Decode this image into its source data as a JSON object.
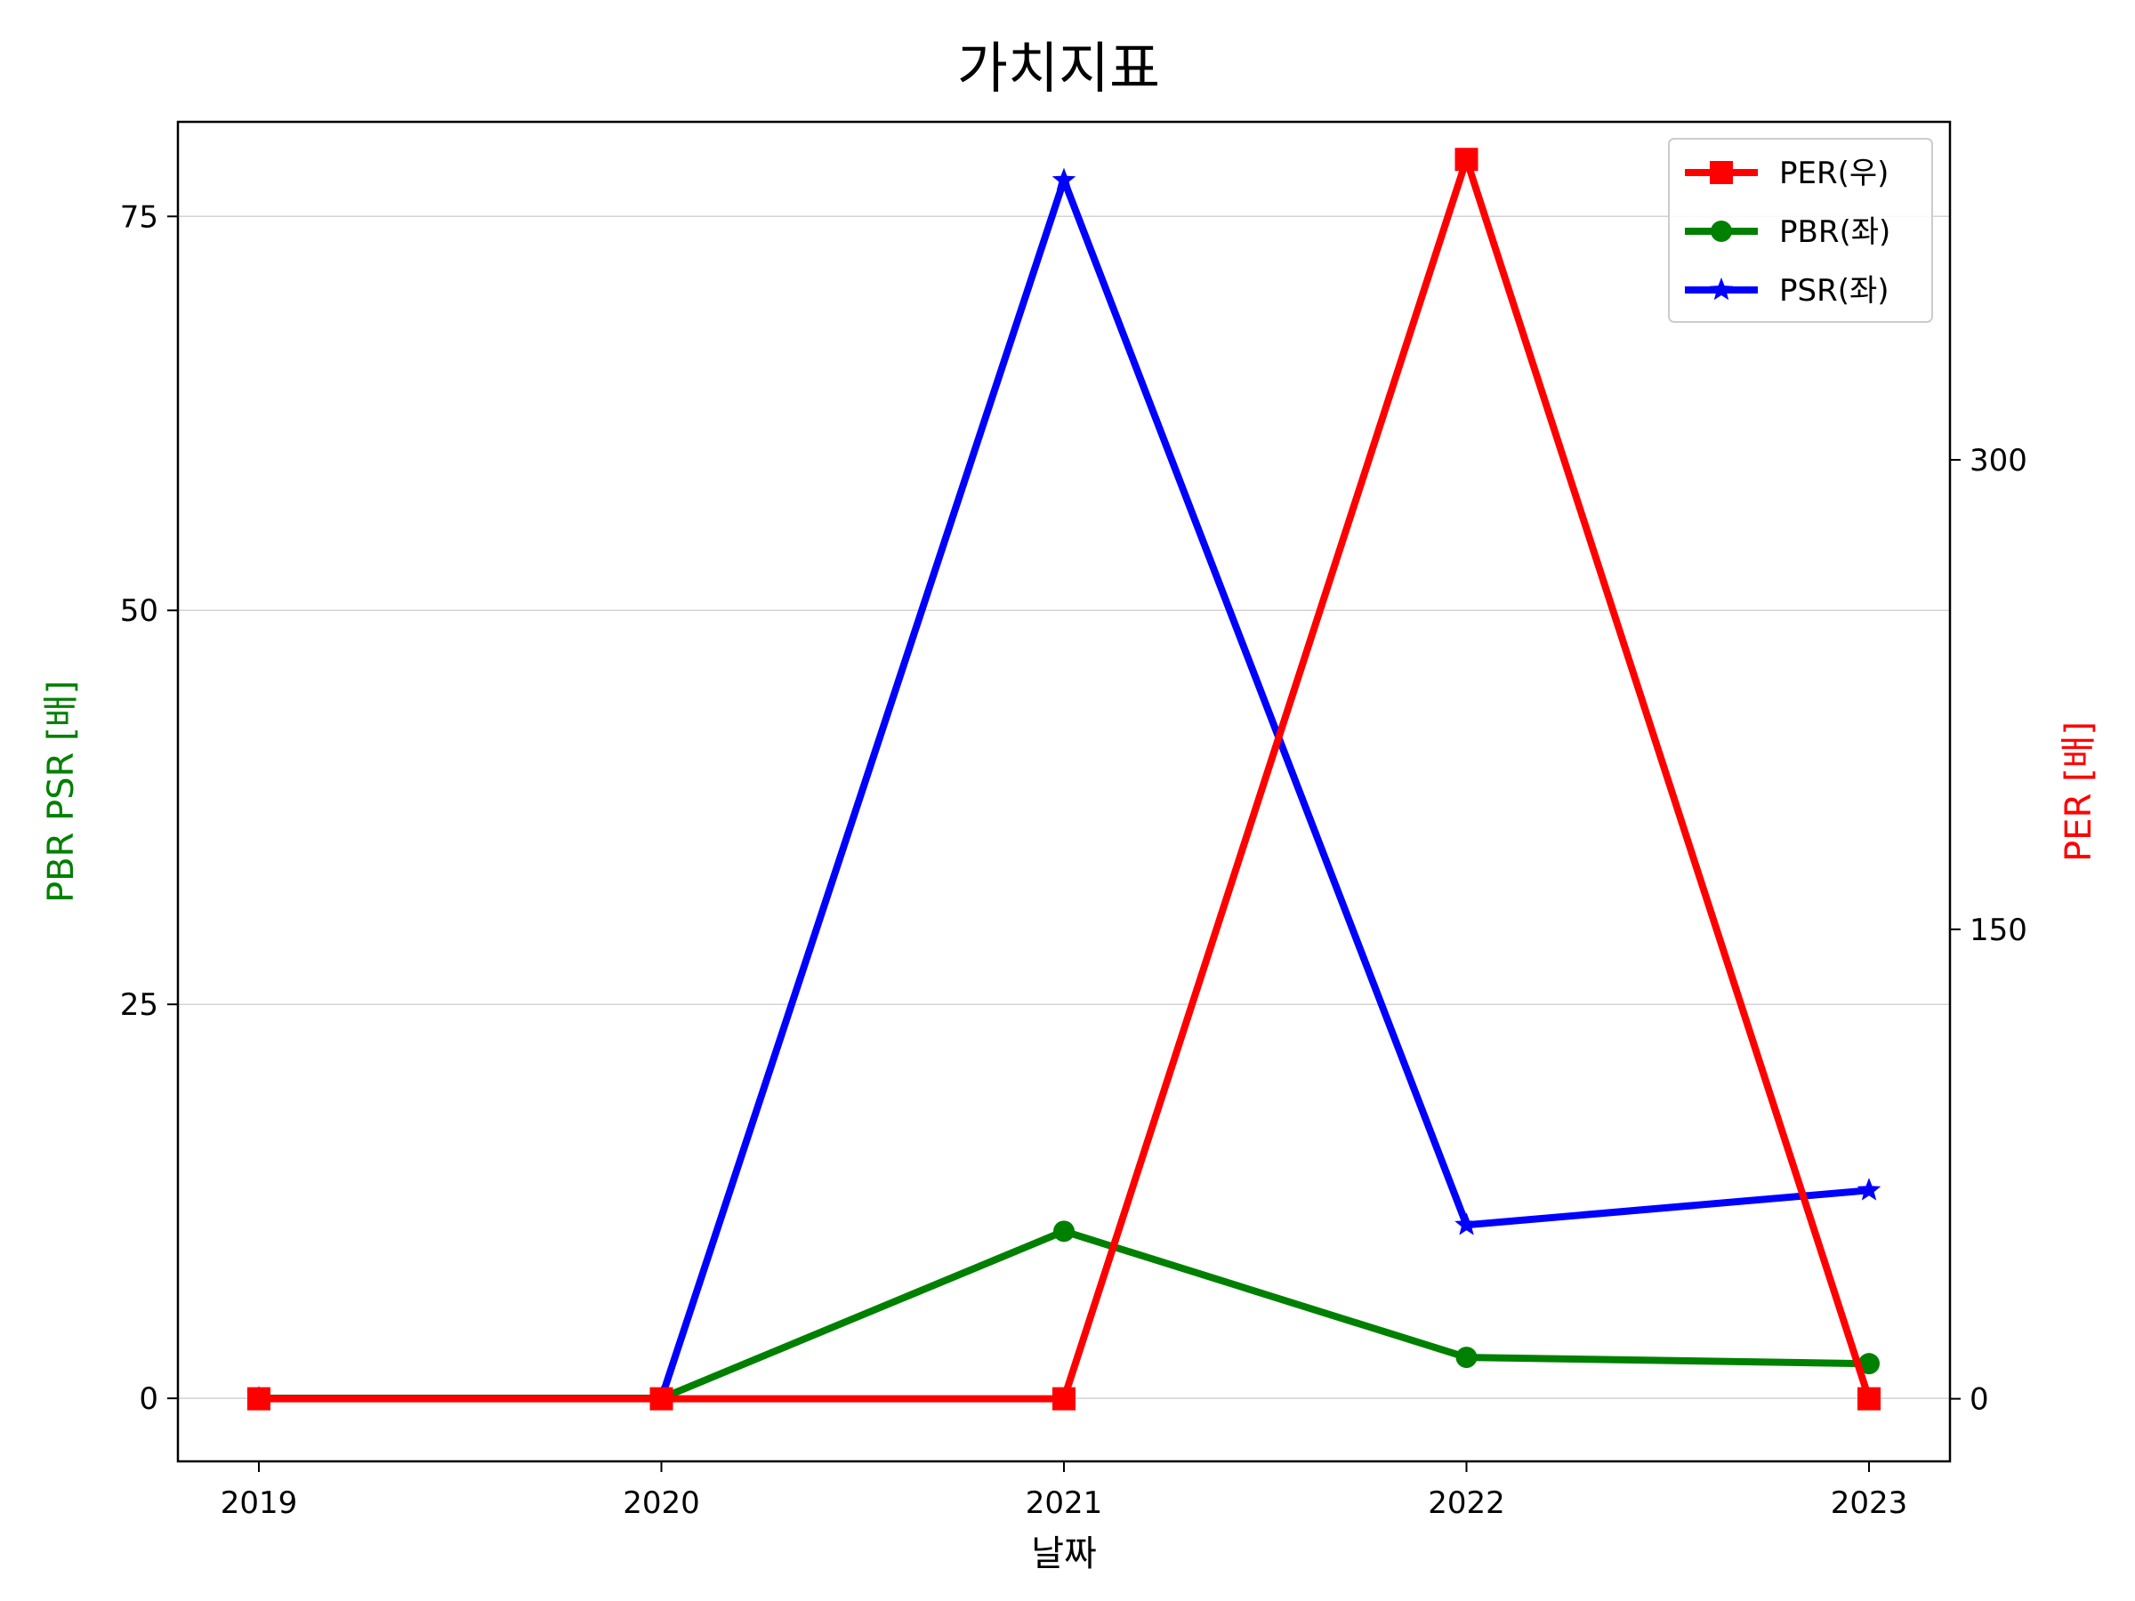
{
  "chart_data": {
    "type": "line",
    "title": "가치지표",
    "xlabel": "날짜",
    "ylabel_left": "PBR PSR [배]",
    "ylabel_right": "PER [배]",
    "categories": [
      "2019",
      "2020",
      "2021",
      "2022",
      "2023"
    ],
    "left_axis": {
      "ylim": [
        -4,
        81
      ],
      "ticks": [
        0,
        25,
        50,
        75
      ],
      "tick_labels": [
        "0",
        "25",
        "50",
        "75"
      ],
      "grid": true
    },
    "right_axis": {
      "ylim": [
        -20,
        408
      ],
      "ticks": [
        0,
        150,
        300
      ],
      "tick_labels": [
        "0",
        "150",
        "300"
      ]
    },
    "series": [
      {
        "name": "PER(우)",
        "axis": "right",
        "color": "#ff0000",
        "marker": "square",
        "values": [
          0,
          0,
          0,
          396,
          0
        ]
      },
      {
        "name": "PBR(좌)",
        "axis": "left",
        "color": "#008000",
        "marker": "circle",
        "values": [
          0,
          0,
          10.6,
          2.6,
          2.2
        ]
      },
      {
        "name": "PSR(좌)",
        "axis": "left",
        "color": "#0000ff",
        "marker": "star",
        "values": [
          0,
          0,
          77.3,
          11.0,
          13.2
        ]
      }
    ],
    "legend_position": "top-right",
    "colors": {
      "left_label": "#008000",
      "right_label": "#ff0000",
      "grid": "#d3d3d3"
    }
  }
}
